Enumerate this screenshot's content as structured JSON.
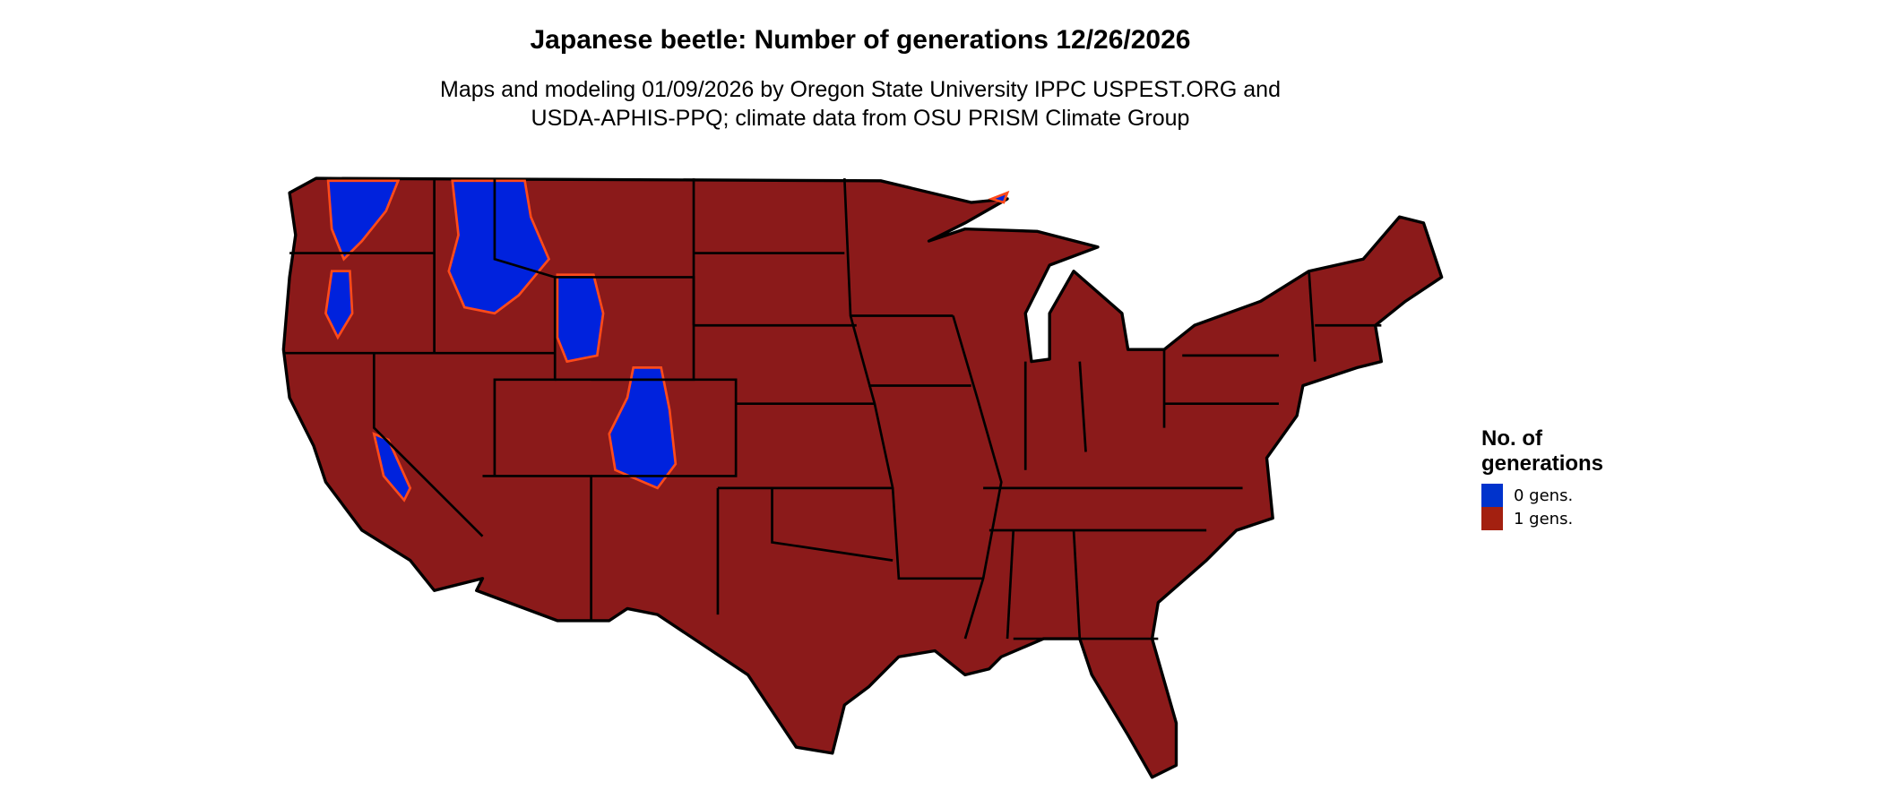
{
  "title": "Japanese beetle: Number of generations 12/26/2026",
  "subtitle_line1": "Maps and modeling 01/09/2026 by Oregon State University IPPC USPEST.ORG and",
  "subtitle_line2": "USDA-APHIS-PPQ; climate data from OSU PRISM Climate Group",
  "map": {
    "region": "Contiguous United States",
    "fill_color": "#8b1a1a",
    "transition_color": "#ff4a1a",
    "border_color": "#000000"
  },
  "legend": {
    "title_line1": "No. of",
    "title_line2": "generations",
    "items": [
      {
        "label": "0 gens.",
        "color": "#0033cc"
      },
      {
        "label": "1 gens.",
        "color": "#a32010"
      }
    ]
  }
}
